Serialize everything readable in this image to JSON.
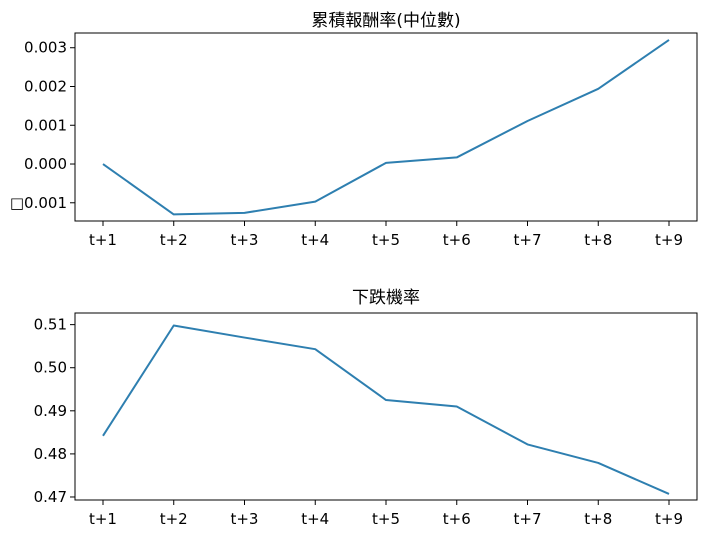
{
  "chart_data": [
    {
      "type": "line",
      "title": "累積報酬率(中位數)",
      "xlabel": "",
      "ylabel": "",
      "x": [
        "t+1",
        "t+2",
        "t+3",
        "t+4",
        "t+5",
        "t+6",
        "t+7",
        "t+8",
        "t+9"
      ],
      "values": [
        0.0,
        -0.0013,
        -0.00126,
        -0.00097,
        3e-05,
        0.00017,
        0.00111,
        0.00194,
        0.0032
      ],
      "ylim": [
        -0.00147,
        0.00338
      ],
      "yticks": [
        -0.001,
        0.0,
        0.001,
        0.002,
        0.003
      ],
      "ytick_labels": [
        "□0.001",
        "0.000",
        "0.001",
        "0.002",
        "0.003"
      ],
      "color": "#2e7fb0",
      "grid": false
    },
    {
      "type": "line",
      "title": "下跌機率",
      "xlabel": "",
      "ylabel": "",
      "x": [
        "t+1",
        "t+2",
        "t+3",
        "t+4",
        "t+5",
        "t+6",
        "t+7",
        "t+8",
        "t+9"
      ],
      "values": [
        0.4842,
        0.5098,
        0.507,
        0.5043,
        0.4925,
        0.491,
        0.4822,
        0.4779,
        0.4707
      ],
      "ylim": [
        0.4693,
        0.5127
      ],
      "yticks": [
        0.47,
        0.48,
        0.49,
        0.5,
        0.51
      ],
      "ytick_labels": [
        "0.47",
        "0.48",
        "0.49",
        "0.50",
        "0.51"
      ],
      "color": "#2e7fb0",
      "grid": false
    }
  ]
}
